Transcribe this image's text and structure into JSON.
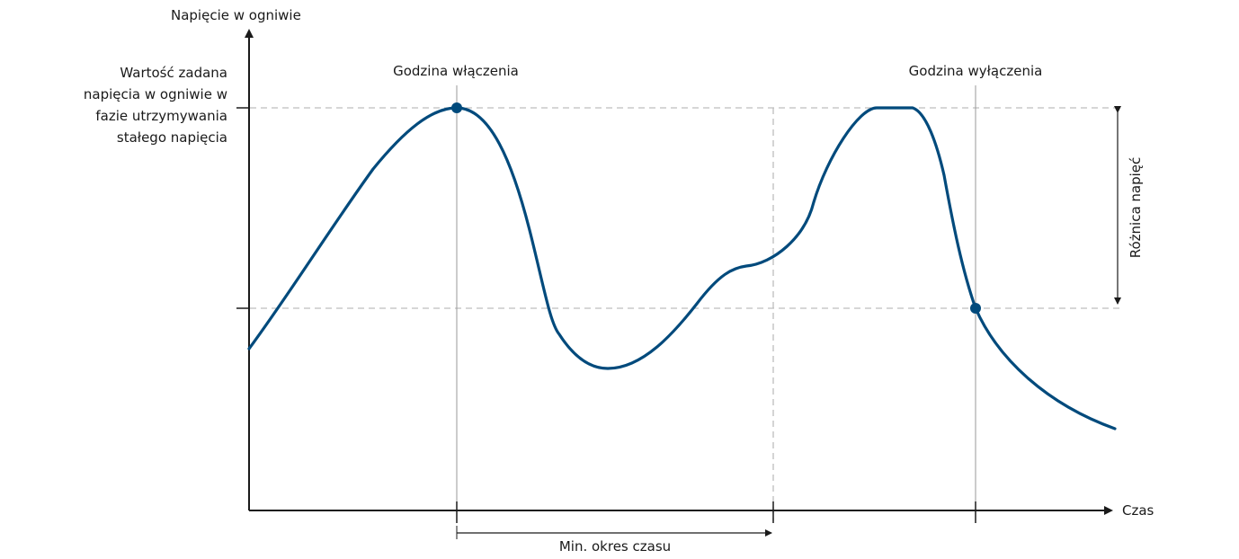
{
  "chart_data": {
    "type": "line",
    "title": "",
    "ylabel": "Napięcie w ogniwie",
    "xlabel": "Czas",
    "y_reference_label": [
      "Wartość zadana",
      "napięcia w ogniwie w",
      "fazie utrzymywania",
      "stałego napięcia"
    ],
    "annotations": {
      "switch_on": "Godzina włączenia",
      "switch_off": "Godzina wyłączenia",
      "voltage_difference": "Różnica napięć",
      "min_period": "Min. okres czasu"
    },
    "series": []
  },
  "colors": {
    "curve": "#004a7c",
    "axis": "#1a1a1a",
    "guides": "#bdbdbd"
  }
}
